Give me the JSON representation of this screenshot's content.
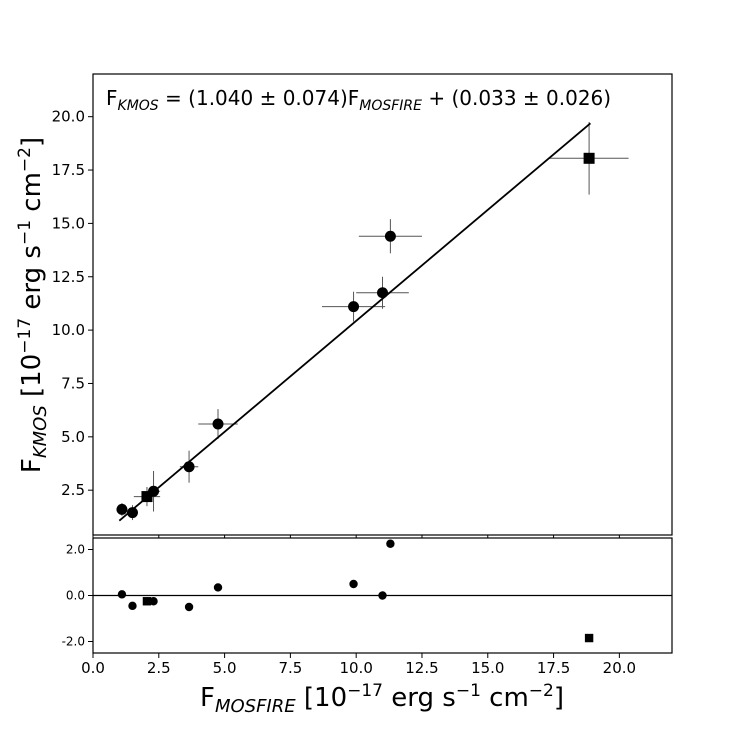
{
  "chart_data": [
    {
      "panel": "main",
      "type": "scatter",
      "annotation": {
        "lhs": "F",
        "lhs_sub": "KMOS",
        "middle": " = (1.040 ± 0.074)F",
        "rhs_sub": "MOSFIRE",
        "tail": " + (0.033 ± 0.026)"
      },
      "ylabel": {
        "base": "F",
        "sub": "KMOS",
        "rest1": " [10",
        "exp1": "−17",
        "rest2": " erg s",
        "exp2": "−1",
        "rest3": " cm",
        "exp3": "−2",
        "rest4": "]"
      },
      "xlim": [
        0.0,
        22.0
      ],
      "ylim": [
        0.4,
        22.0
      ],
      "yticks": [
        2.5,
        5.0,
        7.5,
        10.0,
        12.5,
        15.0,
        17.5,
        20.0
      ],
      "ytick_labels": [
        "2.5",
        "5.0",
        "7.5",
        "10.0",
        "12.5",
        "15.0",
        "17.5",
        "20.0"
      ],
      "fit_line": {
        "slope": 1.04,
        "intercept": 0.033,
        "x_range": [
          1.0,
          18.9
        ]
      },
      "circles": [
        {
          "x": 1.1,
          "y": 1.6,
          "xerr": 0.2,
          "yerr": 0.3
        },
        {
          "x": 1.5,
          "y": 1.45,
          "xerr": 0.2,
          "yerr": 0.35
        },
        {
          "x": 2.3,
          "y": 2.45,
          "xerr": 0.25,
          "yerr": 0.95
        },
        {
          "x": 3.65,
          "y": 3.6,
          "xerr": 0.35,
          "yerr": 0.75
        },
        {
          "x": 4.75,
          "y": 5.6,
          "xerr": 0.75,
          "yerr": 0.7
        },
        {
          "x": 9.9,
          "y": 11.1,
          "xerr": 1.2,
          "yerr": 0.7
        },
        {
          "x": 11.0,
          "y": 11.75,
          "xerr": 1.0,
          "yerr": 0.75
        },
        {
          "x": 11.3,
          "y": 14.4,
          "xerr": 1.2,
          "yerr": 0.8
        }
      ],
      "squares": [
        {
          "x": 2.05,
          "y": 2.2,
          "xerr": 0.5,
          "yerr": 0.45
        },
        {
          "x": 18.85,
          "y": 18.05,
          "xerr": 1.5,
          "yerr": 1.7
        }
      ]
    },
    {
      "panel": "residual",
      "type": "scatter",
      "xlabel": {
        "base": "F",
        "sub": "MOSFIRE",
        "rest1": " [10",
        "exp1": "−17",
        "rest2": " erg s",
        "exp2": "−1",
        "rest3": " cm",
        "exp3": "−2",
        "rest4": "]"
      },
      "xlim": [
        0.0,
        22.0
      ],
      "ylim": [
        -2.5,
        2.5
      ],
      "xticks": [
        0.0,
        2.5,
        5.0,
        7.5,
        10.0,
        12.5,
        15.0,
        17.5,
        20.0
      ],
      "xtick_labels": [
        "0.0",
        "2.5",
        "5.0",
        "7.5",
        "10.0",
        "12.5",
        "15.0",
        "17.5",
        "20.0"
      ],
      "yticks": [
        -2.0,
        0.0,
        2.0
      ],
      "ytick_labels": [
        "-2.0",
        "0.0",
        "2.0"
      ],
      "zero_line": 0.0,
      "circles": [
        {
          "x": 1.1,
          "y": 0.05
        },
        {
          "x": 1.5,
          "y": -0.45
        },
        {
          "x": 2.3,
          "y": -0.25
        },
        {
          "x": 3.65,
          "y": -0.5
        },
        {
          "x": 4.75,
          "y": 0.35
        },
        {
          "x": 9.9,
          "y": 0.5
        },
        {
          "x": 11.0,
          "y": 0.0
        },
        {
          "x": 11.3,
          "y": 2.25
        }
      ],
      "squares": [
        {
          "x": 2.05,
          "y": -0.25
        },
        {
          "x": 18.85,
          "y": -1.85
        }
      ]
    }
  ]
}
